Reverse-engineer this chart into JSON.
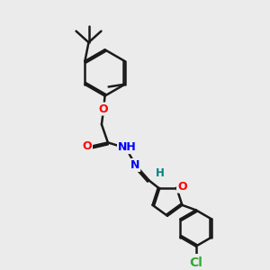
{
  "bg_color": "#ebebeb",
  "bond_color": "#1a1a1a",
  "bond_width": 1.8,
  "atom_colors": {
    "O": "#ff0000",
    "N": "#0000ff",
    "Cl": "#33aa33",
    "H": "#008080",
    "C": "#1a1a1a"
  },
  "font_size_atom": 9,
  "font_size_small": 7.5,
  "figsize": [
    3.0,
    3.0
  ],
  "dpi": 100
}
